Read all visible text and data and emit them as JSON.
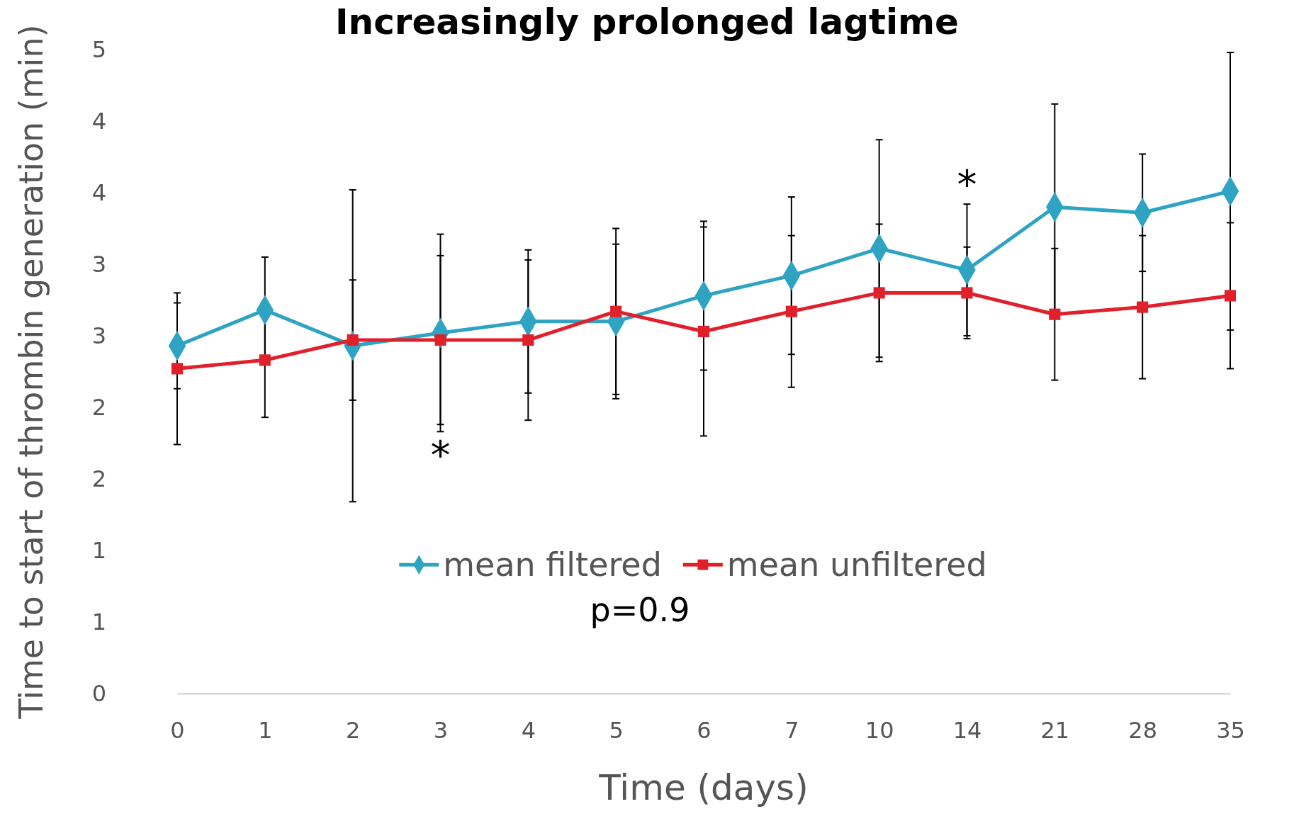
{
  "chart_data": {
    "type": "line",
    "title": "Increasingly prolonged lagtime",
    "xlabel": "Time (days)",
    "ylabel": "Time to start of thrombin generation (min)",
    "categories": [
      "0",
      "1",
      "2",
      "3",
      "4",
      "5",
      "6",
      "7",
      "10",
      "14",
      "21",
      "28",
      "35"
    ],
    "ylim": [
      0,
      4.5
    ],
    "yticks": [
      0,
      {
        "value": 0.5,
        "label": "1"
      },
      1,
      {
        "value": 1.5,
        "label": "2"
      },
      2,
      {
        "value": 2.5,
        "label": "3"
      },
      3,
      {
        "value": 3.5,
        "label": "4"
      },
      4,
      {
        "value": 4.5,
        "label": "5"
      }
    ],
    "grid": false,
    "legend": "bottom",
    "line_style": "solid",
    "series": [
      {
        "name": "mean filtered",
        "color": "#2ea3c2",
        "marker": "diamond",
        "values": [
          2.43,
          2.68,
          2.43,
          2.52,
          2.6,
          2.6,
          2.78,
          2.92,
          3.11,
          2.96,
          3.4,
          3.36,
          3.51
        ],
        "errors": [
          0.3,
          0.37,
          1.09,
          0.69,
          0.5,
          0.54,
          0.52,
          0.55,
          0.76,
          0.46,
          0.72,
          0.41,
          0.97
        ]
      },
      {
        "name": "mean unfiltered",
        "color": "#e0202a",
        "marker": "square",
        "values": [
          2.27,
          2.33,
          2.47,
          2.47,
          2.47,
          2.67,
          2.53,
          2.67,
          2.8,
          2.8,
          2.65,
          2.7,
          2.78
        ],
        "errors": [
          0.53,
          0.4,
          0.42,
          0.59,
          0.56,
          0.58,
          0.73,
          0.53,
          0.48,
          0.32,
          0.46,
          0.5,
          0.51
        ]
      }
    ],
    "annotations": [
      "*",
      "*",
      "p=0.9"
    ]
  }
}
